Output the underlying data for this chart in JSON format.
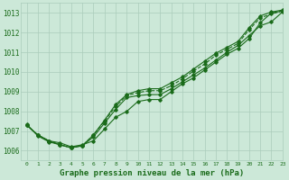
{
  "title": "Graphe pression niveau de la mer (hPa)",
  "bg_color": "#cce8d8",
  "grid_color": "#aaccbb",
  "line_color": "#1a6b1a",
  "xlim": [
    -0.5,
    23
  ],
  "ylim": [
    1005.5,
    1013.5
  ],
  "xticks": [
    0,
    1,
    2,
    3,
    4,
    5,
    6,
    7,
    8,
    9,
    10,
    11,
    12,
    13,
    14,
    15,
    16,
    17,
    18,
    19,
    20,
    21,
    22,
    23
  ],
  "yticks": [
    1006,
    1007,
    1008,
    1009,
    1010,
    1011,
    1012,
    1013
  ],
  "series": [
    {
      "y": [
        1007.3,
        1006.8,
        1006.5,
        1006.4,
        1006.2,
        1006.3,
        1006.5,
        1007.1,
        1007.7,
        1008.0,
        1008.5,
        1008.6,
        1008.6,
        1009.0,
        1009.4,
        1009.7,
        1010.1,
        1010.5,
        1010.9,
        1011.2,
        1011.7,
        1012.5,
        1013.0,
        1013.1
      ],
      "ls": "-",
      "lw": 0.8,
      "marker": "D",
      "ms": 1.8
    },
    {
      "y": [
        1007.3,
        1006.8,
        1006.5,
        1006.3,
        1006.15,
        1006.25,
        1006.7,
        1007.4,
        1008.1,
        1008.7,
        1008.8,
        1008.85,
        1008.85,
        1009.15,
        1009.5,
        1009.85,
        1010.2,
        1010.6,
        1011.0,
        1011.35,
        1011.85,
        1012.35,
        1012.55,
        1013.05
      ],
      "ls": "-",
      "lw": 0.8,
      "marker": "D",
      "ms": 1.8
    },
    {
      "y": [
        1007.3,
        1006.8,
        1006.5,
        1006.3,
        1006.15,
        1006.25,
        1006.8,
        1007.5,
        1008.25,
        1008.8,
        1008.95,
        1009.05,
        1009.05,
        1009.3,
        1009.65,
        1010.05,
        1010.4,
        1010.85,
        1011.15,
        1011.45,
        1012.15,
        1012.75,
        1012.95,
        1013.1
      ],
      "ls": "--",
      "lw": 0.8,
      "marker": "D",
      "ms": 1.8
    },
    {
      "y": [
        1007.35,
        1006.75,
        1006.45,
        1006.3,
        1006.15,
        1006.25,
        1006.8,
        1007.55,
        1008.35,
        1008.85,
        1009.05,
        1009.15,
        1009.15,
        1009.45,
        1009.75,
        1010.15,
        1010.55,
        1010.95,
        1011.25,
        1011.55,
        1012.25,
        1012.85,
        1013.05,
        1013.15
      ],
      "ls": "-",
      "lw": 0.8,
      "marker": "D",
      "ms": 1.8
    }
  ],
  "xlabel_fontsize": 6.5,
  "ytick_fontsize": 5.5,
  "xtick_fontsize": 4.5
}
